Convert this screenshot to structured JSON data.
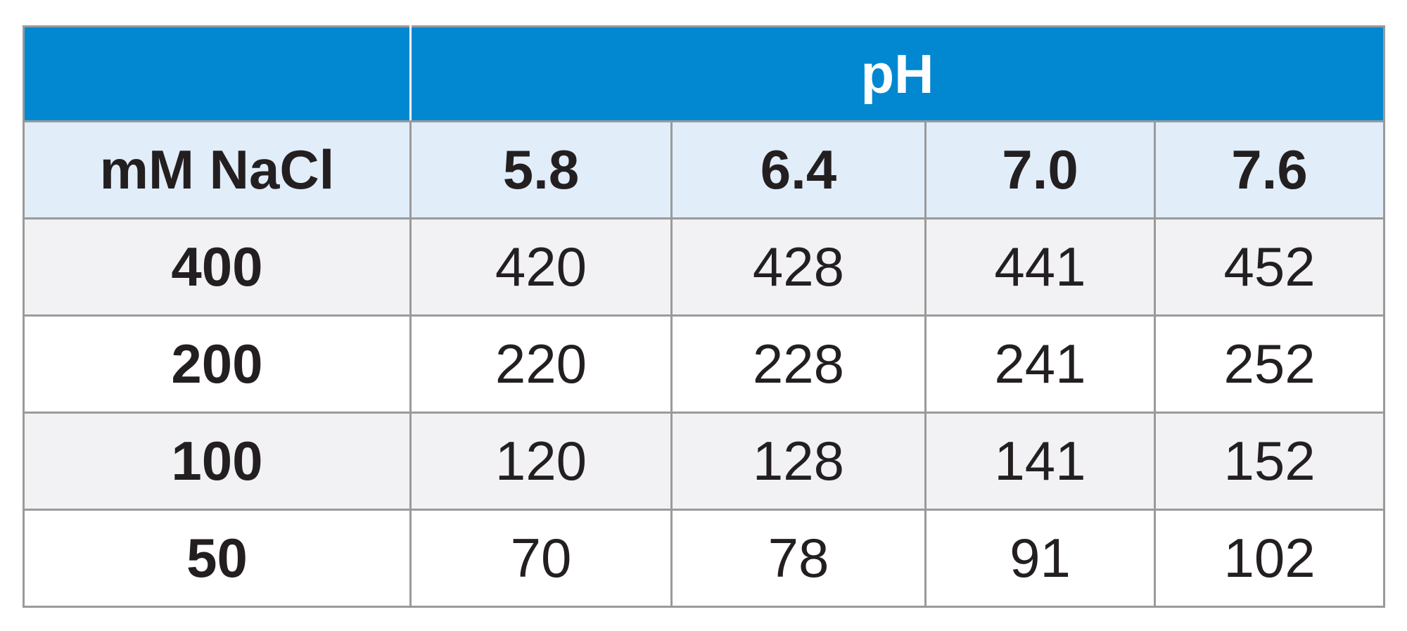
{
  "header": {
    "title": "pH"
  },
  "columns": {
    "label": "mM NaCl",
    "values": [
      "5.8",
      "6.4",
      "7.0",
      "7.6"
    ]
  },
  "rows": [
    {
      "label": 400,
      "values": [
        420,
        428,
        441,
        452
      ]
    },
    {
      "label": 200,
      "values": [
        220,
        228,
        241,
        252
      ]
    },
    {
      "label": 100,
      "values": [
        120,
        128,
        141,
        152
      ]
    },
    {
      "label": 50,
      "values": [
        70,
        78,
        91,
        102
      ]
    }
  ]
}
